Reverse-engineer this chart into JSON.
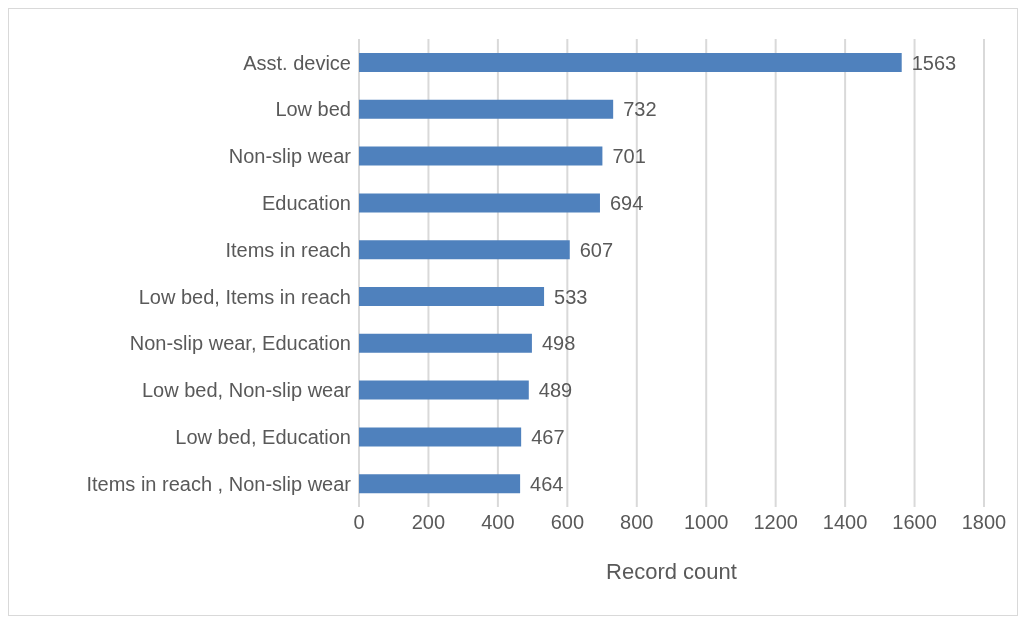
{
  "chart_data": {
    "type": "bar",
    "orientation": "horizontal",
    "xlabel": "Record count",
    "categories": [
      "Asst. device",
      "Low bed",
      "Non-slip wear",
      "Education",
      "Items in reach",
      "Low bed, Items in reach",
      "Non-slip wear, Education",
      "Low bed, Non-slip wear",
      "Low bed, Education",
      "Items in reach , Non-slip wear"
    ],
    "values": [
      1563,
      732,
      701,
      694,
      607,
      533,
      498,
      489,
      467,
      464
    ],
    "color": "#4f81bd",
    "xlim": [
      0,
      1800
    ],
    "xticks": [
      0,
      200,
      400,
      600,
      800,
      1000,
      1200,
      1400,
      1600,
      1800
    ],
    "grid": "x",
    "data_labels": true
  }
}
